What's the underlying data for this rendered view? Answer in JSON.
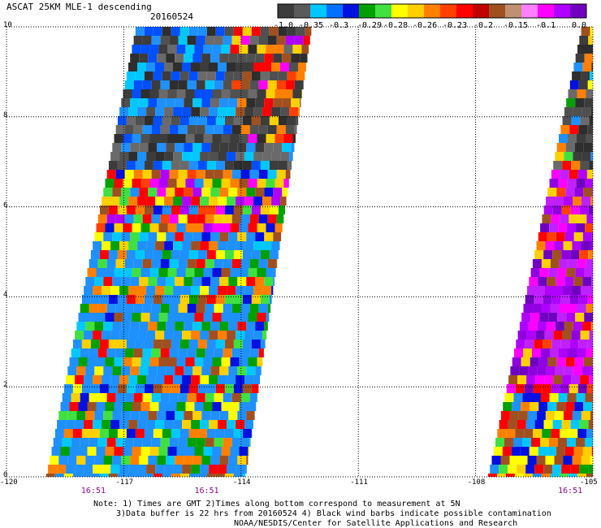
{
  "header": {
    "title": "ASCAT 25KM MLE-1 descending",
    "date": "20160524"
  },
  "colorbar": {
    "labels": [
      "-1.0",
      "-0.35",
      "-0.3",
      "-0.29",
      "-0.28",
      "-0.26",
      "-0.23",
      "-0.2",
      "-0.15",
      "-0.1",
      "0.0"
    ],
    "colors": [
      "#3c3c3c",
      "#5a5a5a",
      "#00c8ff",
      "#0070ff",
      "#0010e0",
      "#00a000",
      "#40e040",
      "#ffff00",
      "#ffd000",
      "#ff8000",
      "#ff4000",
      "#ff0000",
      "#c00000",
      "#a05020",
      "#c09070",
      "#ff80ff",
      "#ff00ff",
      "#b000ff",
      "#7000c0"
    ]
  },
  "axes": {
    "y_ticks": [
      "0",
      "2",
      "4",
      "6",
      "8",
      "10"
    ],
    "x_ticks": [
      "-120",
      "-117",
      "-114",
      "-111",
      "-108",
      "-105"
    ],
    "times": [
      "16:51",
      "16:51",
      "16:51"
    ]
  },
  "notes": {
    "line1": "Note: 1) Times are GMT 2)Times along bottom correspond to measurement at 5N",
    "line2": "3)Data buffer is 22 hrs from 20160524 4) Black wind barbs indicate possible contamination",
    "line3": "NOAA/NESDIS/Center for Satellite Applications and Research"
  },
  "map": {
    "lon_range": [
      -120,
      -105
    ],
    "lat_range": [
      0,
      10
    ],
    "swaths": [
      {
        "name": "west swath",
        "lon_left_at_lat0": -119.0,
        "lon_left_at_lat10": -116.7,
        "lon_right_at_lat0": -113.9,
        "lon_right_at_lat10": -112.2
      },
      {
        "name": "east swath",
        "lon_left_at_lat0": -107.7,
        "lon_left_at_lat10": -105.3,
        "lon_right_at_lat0": -105.0,
        "lon_right_at_lat10": -105.0
      }
    ]
  }
}
